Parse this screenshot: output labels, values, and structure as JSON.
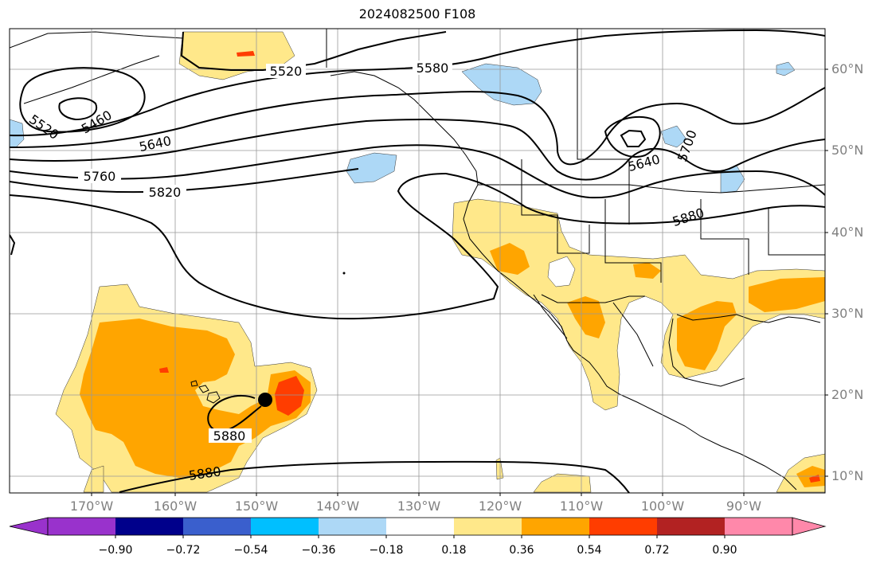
{
  "title": "2024082500 F108",
  "map": {
    "lat_labels": [
      "60°N",
      "50°N",
      "40°N",
      "30°N",
      "20°N",
      "10°N"
    ],
    "lon_labels": [
      "170°W",
      "160°W",
      "150°W",
      "140°W",
      "130°W",
      "120°W",
      "110°W",
      "100°W",
      "90°W"
    ],
    "contour_labels": [
      "5520",
      "5580",
      "5520",
      "5460",
      "5640",
      "5760",
      "5820",
      "5640",
      "5700",
      "5880",
      "5880",
      "5880"
    ],
    "storm_marker": "filled-circle"
  },
  "colorbar": {
    "ticks": [
      "−0.90",
      "−0.72",
      "−0.54",
      "−0.36",
      "−0.18",
      "0.18",
      "0.36",
      "0.54",
      "0.72",
      "0.90"
    ],
    "colors": [
      "#9932CC",
      "#00008B",
      "#3A5FCD",
      "#00BFFF",
      "#ADD8F6",
      "#FFFFFF",
      "#FFE88A",
      "#FFA500",
      "#FF3D00",
      "#B22222",
      "#FF88AA"
    ]
  }
}
